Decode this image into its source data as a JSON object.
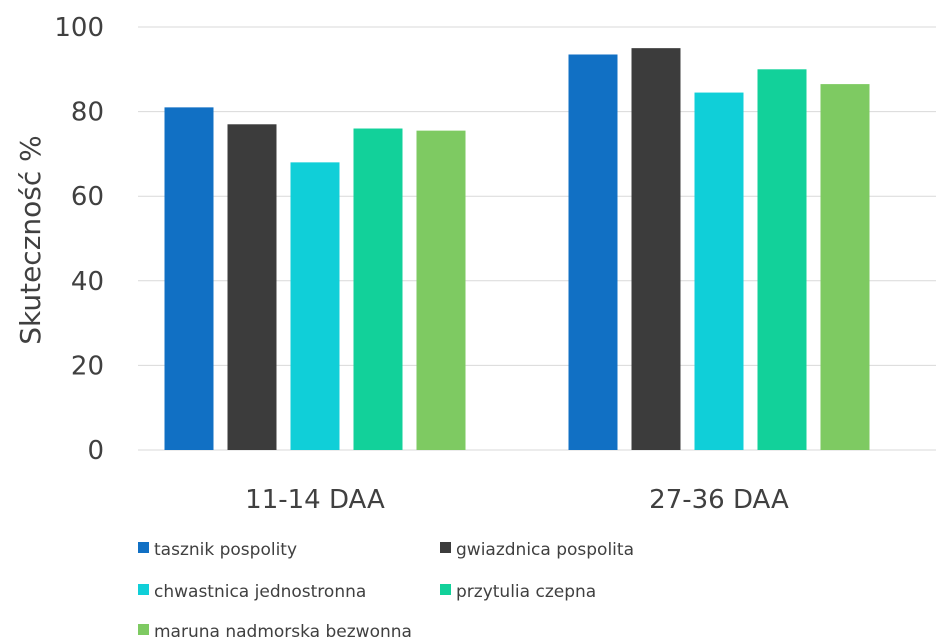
{
  "chart_data": {
    "type": "bar",
    "title": "",
    "xlabel": "",
    "ylabel": "Skuteczność %",
    "ylim": [
      0,
      100
    ],
    "yticks": [
      0,
      20,
      40,
      60,
      80,
      100
    ],
    "grid": true,
    "legend_position": "bottom",
    "categories": [
      "11-14 DAA",
      "27-36 DAA"
    ],
    "series": [
      {
        "name": "tasznik pospolity",
        "color": "#1170c4",
        "values": [
          81,
          93.5
        ]
      },
      {
        "name": "gwiazdnica pospolita",
        "color": "#3c3c3c",
        "values": [
          77,
          95
        ]
      },
      {
        "name": "chwastnica jednostronna",
        "color": "#10cfd8",
        "values": [
          68,
          84.5
        ]
      },
      {
        "name": "przytulia czepna",
        "color": "#12d19a",
        "values": [
          76,
          90
        ]
      },
      {
        "name": "maruna nadmorska bezwonna",
        "color": "#7eca62",
        "values": [
          75.5,
          86.5
        ]
      }
    ]
  }
}
